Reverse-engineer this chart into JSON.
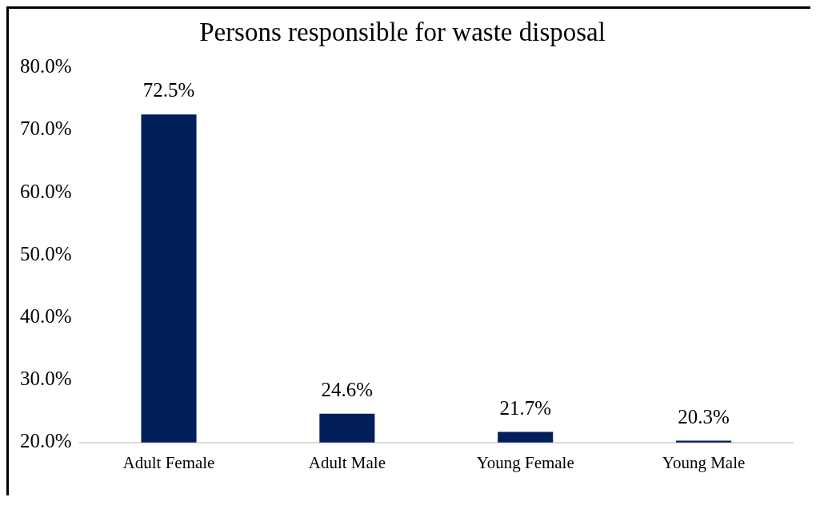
{
  "chart_data": {
    "type": "bar",
    "title": "Persons responsible for waste disposal",
    "categories": [
      "Adult Female",
      "Adult Male",
      "Young Female",
      "Young Male"
    ],
    "values": [
      72.5,
      24.6,
      21.7,
      20.3
    ],
    "value_labels": [
      "72.5%",
      "24.6%",
      "21.7%",
      "20.3%"
    ],
    "color": "#001f5b",
    "ylim": [
      20,
      80
    ],
    "yticks": [
      {
        "value": 80,
        "label": "80.0%"
      },
      {
        "value": 70,
        "label": "70.0%"
      },
      {
        "value": 60,
        "label": "60.0%"
      },
      {
        "value": 50,
        "label": "50.0%"
      },
      {
        "value": 40,
        "label": "40.0%"
      },
      {
        "value": 30,
        "label": "30.0%"
      },
      {
        "value": 20,
        "label": "20.0%"
      }
    ],
    "grid": false,
    "legend": false
  }
}
